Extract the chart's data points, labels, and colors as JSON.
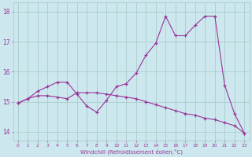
{
  "xlabel": "Windchill (Refroidissement éolien,°C)",
  "background_color": "#cce8ee",
  "line_color": "#993399",
  "grid_color": "#aacccc",
  "x": [
    0,
    1,
    2,
    3,
    4,
    5,
    6,
    7,
    8,
    9,
    10,
    11,
    12,
    13,
    14,
    15,
    16,
    17,
    18,
    19,
    20,
    21,
    22,
    23
  ],
  "line1": [
    14.95,
    15.1,
    15.35,
    15.5,
    15.65,
    15.65,
    15.25,
    14.85,
    14.65,
    15.05,
    15.5,
    15.6,
    15.95,
    16.55,
    16.95,
    17.85,
    17.2,
    17.2,
    17.55,
    17.85,
    17.85,
    15.55,
    14.6,
    13.95
  ],
  "line2": [
    14.95,
    15.1,
    15.2,
    15.2,
    15.15,
    15.1,
    15.3,
    15.3,
    15.3,
    15.25,
    15.2,
    15.15,
    15.1,
    15.0,
    14.9,
    14.8,
    14.7,
    14.6,
    14.55,
    14.45,
    14.4,
    14.3,
    14.2,
    13.95
  ],
  "ylim": [
    13.7,
    18.3
  ],
  "xlim": [
    -0.5,
    23.5
  ],
  "yticks": [
    14,
    15,
    16,
    17,
    18
  ],
  "xticks": [
    0,
    1,
    2,
    3,
    4,
    5,
    6,
    7,
    8,
    9,
    10,
    11,
    12,
    13,
    14,
    15,
    16,
    17,
    18,
    19,
    20,
    21,
    22,
    23
  ],
  "xtick_labels": [
    "0",
    "1",
    "2",
    "3",
    "4",
    "5",
    "6",
    "7",
    "8",
    "9",
    "10",
    "11",
    "12",
    "13",
    "14",
    "15",
    "16",
    "17",
    "18",
    "19",
    "20",
    "21",
    "22",
    "23"
  ]
}
